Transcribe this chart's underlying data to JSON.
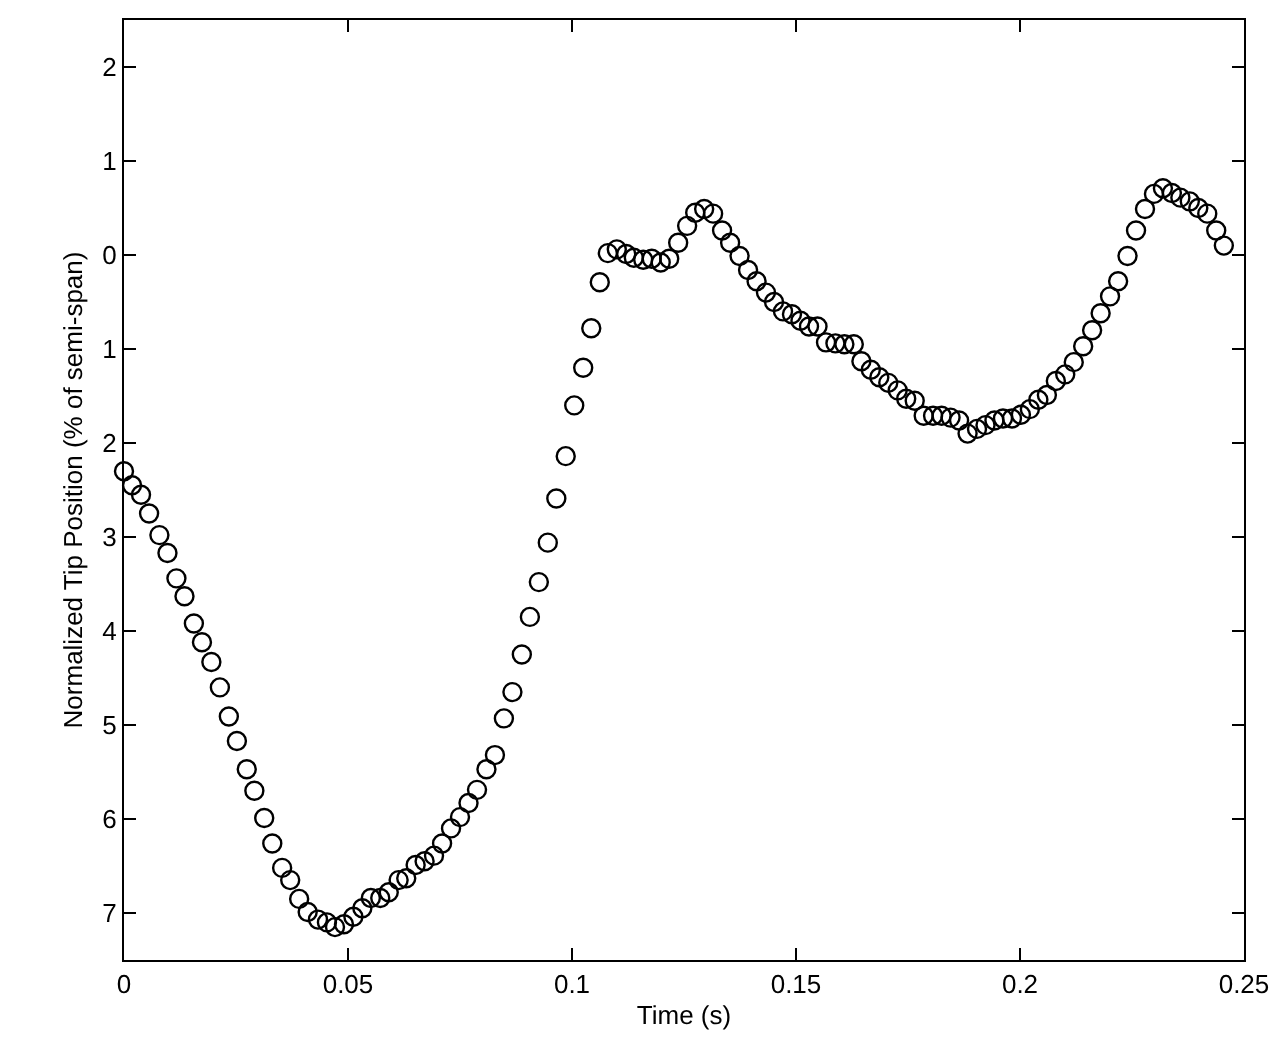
{
  "chart_data": {
    "type": "scatter",
    "xlabel": "Time (s)",
    "ylabel": "Normalized Tip Position (% of semi-span)",
    "x": [
      0,
      0.0018,
      0.0038,
      0.0056,
      0.0079,
      0.0097,
      0.0117,
      0.0135,
      0.0156,
      0.0174,
      0.0195,
      0.0214,
      0.0234,
      0.0252,
      0.0274,
      0.0291,
      0.0313,
      0.0331,
      0.0353,
      0.0371,
      0.0391,
      0.041,
      0.0433,
      0.0453,
      0.0471,
      0.0491,
      0.0512,
      0.0532,
      0.0551,
      0.0572,
      0.0591,
      0.0613,
      0.063,
      0.0651,
      0.0671,
      0.0692,
      0.071,
      0.073,
      0.075,
      0.0769,
      0.0788,
      0.0809,
      0.0828,
      0.0848,
      0.0867,
      0.0888,
      0.0906,
      0.0926,
      0.0946,
      0.0965,
      0.0986,
      0.1005,
      0.1025,
      0.1043,
      0.1062,
      0.108,
      0.11,
      0.1121,
      0.1138,
      0.1159,
      0.1178,
      0.1198,
      0.1217,
      0.1237,
      0.1257,
      0.1275,
      0.1295,
      0.1315,
      0.1335,
      0.1353,
      0.1374,
      0.1393,
      0.1412,
      0.1433,
      0.1451,
      0.1471,
      0.1491,
      0.151,
      0.1529,
      0.1548,
      0.1567,
      0.1588,
      0.1608,
      0.1629,
      0.1646,
      0.1667,
      0.1686,
      0.1706,
      0.1727,
      0.1746,
      0.1765,
      0.1785,
      0.1806,
      0.1825,
      0.1845,
      0.1864,
      0.1883,
      0.1904,
      0.1923,
      0.1943,
      0.1962,
      0.1982,
      0.2002,
      0.2022,
      0.2041,
      0.206,
      0.208,
      0.2101,
      0.212,
      0.2141,
      0.2161,
      0.218,
      0.2201,
      0.2219,
      0.224,
      0.2259,
      0.2279,
      0.2299,
      0.2319,
      0.2339,
      0.2358,
      0.2379,
      0.2398,
      0.2418,
      0.2438,
      0.2455
    ],
    "series": [
      {
        "color": "#000000",
        "values": [
          2.3,
          2.45,
          2.55,
          2.75,
          2.98,
          3.17,
          3.44,
          3.63,
          3.92,
          4.12,
          4.33,
          4.6,
          4.91,
          5.17,
          5.47,
          5.7,
          5.99,
          6.26,
          6.52,
          6.65,
          6.85,
          6.99,
          7.07,
          7.1,
          7.15,
          7.12,
          7.04,
          6.95,
          6.84,
          6.84,
          6.78,
          6.65,
          6.63,
          6.49,
          6.45,
          6.39,
          6.26,
          6.1,
          5.98,
          5.83,
          5.69,
          5.47,
          5.32,
          4.93,
          4.65,
          4.25,
          3.85,
          3.48,
          3.06,
          2.59,
          2.14,
          1.6,
          1.2,
          0.78,
          0.29,
          -0.02,
          -0.06,
          -0.01,
          0.03,
          0.05,
          0.04,
          0.08,
          0.04,
          -0.13,
          -0.31,
          -0.45,
          -0.49,
          -0.44,
          -0.26,
          -0.13,
          0.01,
          0.16,
          0.28,
          0.4,
          0.5,
          0.6,
          0.63,
          0.7,
          0.76,
          0.76,
          0.93,
          0.94,
          0.95,
          0.95,
          1.13,
          1.22,
          1.3,
          1.36,
          1.44,
          1.53,
          1.55,
          1.71,
          1.71,
          1.71,
          1.73,
          1.76,
          1.9,
          1.85,
          1.81,
          1.76,
          1.74,
          1.74,
          1.7,
          1.64,
          1.54,
          1.49,
          1.34,
          1.27,
          1.14,
          0.97,
          0.8,
          0.62,
          0.44,
          0.28,
          0.01,
          -0.26,
          -0.49,
          -0.65,
          -0.71,
          -0.66,
          -0.61,
          -0.57,
          -0.5,
          -0.44,
          -0.26,
          -0.1
        ]
      }
    ],
    "marker": "circle",
    "grid": false,
    "xlim": [
      0,
      0.25
    ],
    "xticks": [
      0,
      0.05,
      0.1,
      0.15,
      0.2,
      0.25
    ],
    "ylim": [
      7.5,
      -2.5
    ],
    "yticks": [
      {
        "value": -2,
        "label": "2"
      },
      {
        "value": -1,
        "label": "1"
      },
      0,
      1,
      2,
      3,
      4,
      5,
      6,
      7
    ]
  }
}
